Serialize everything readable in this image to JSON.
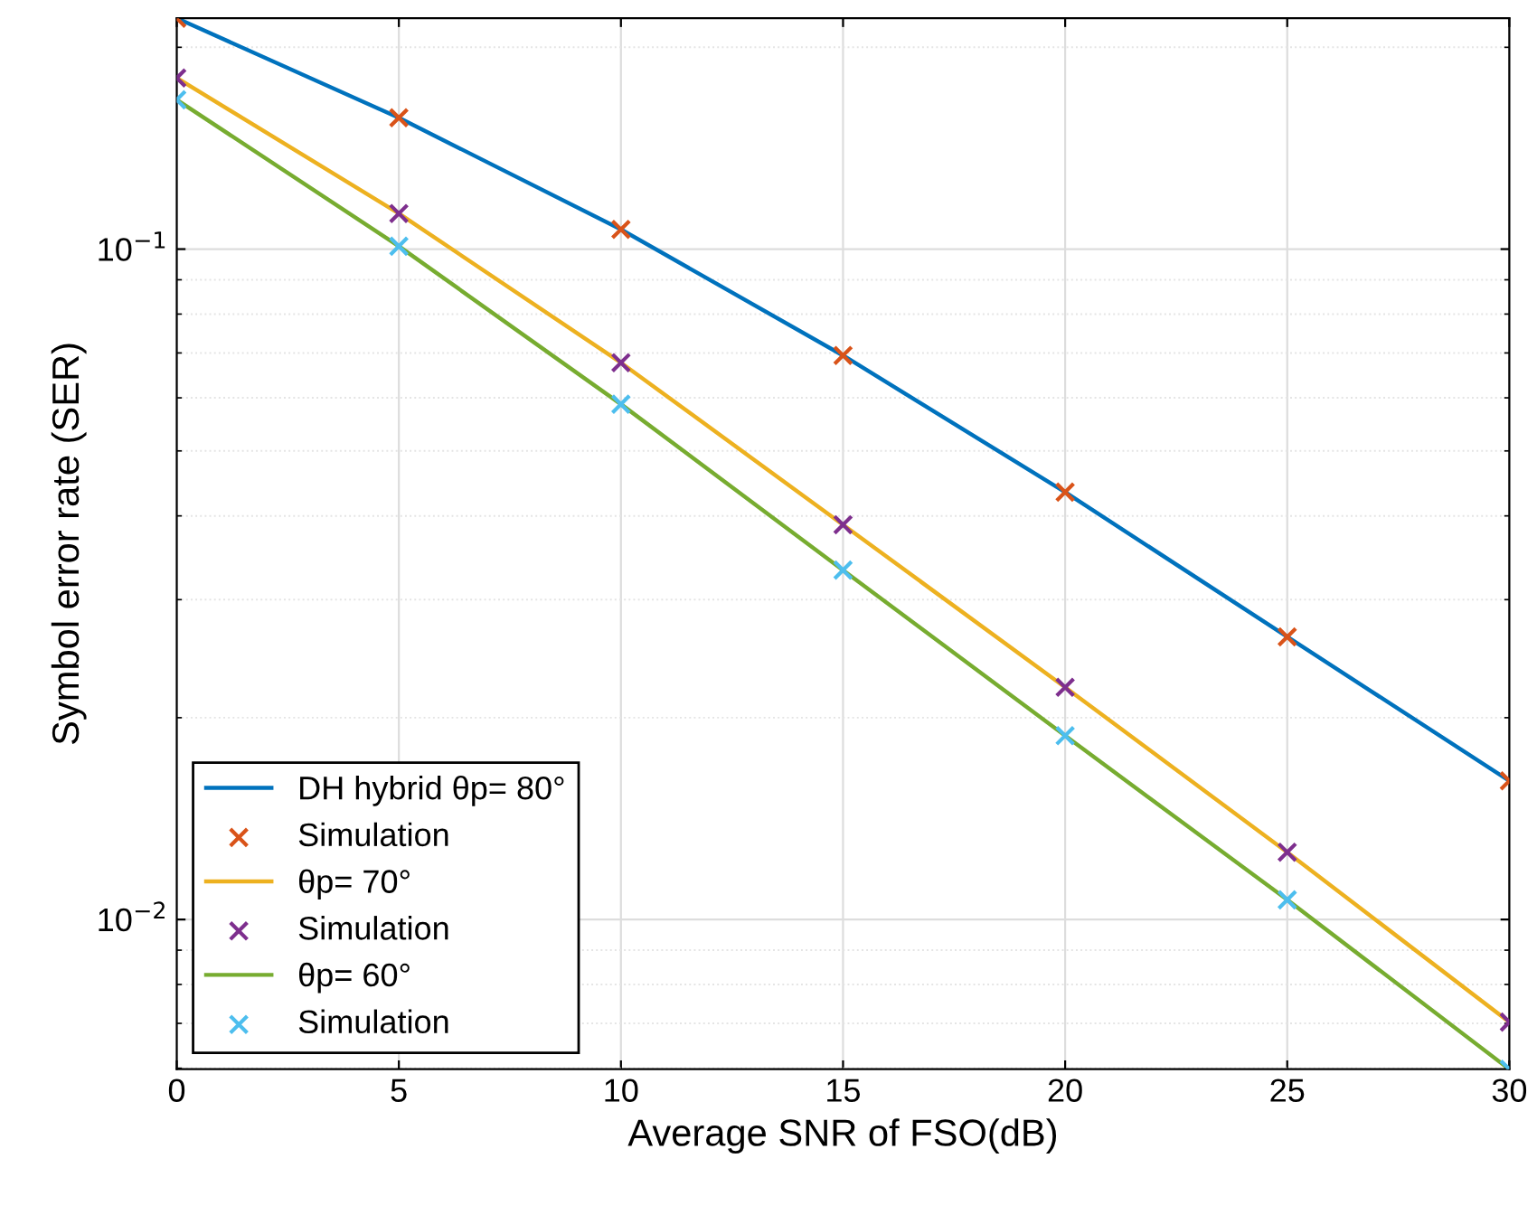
{
  "chart_data": {
    "type": "line",
    "xlabel": "Average SNR of FSO(dB)",
    "ylabel": "Symbol error rate (SER)",
    "x": [
      0,
      5,
      10,
      15,
      20,
      25,
      30
    ],
    "series": [
      {
        "name": "DH hybrid θp= 80°",
        "color": "#0072bd",
        "values": [
          0.221,
          0.157,
          0.107,
          0.0694,
          0.0434,
          0.0264,
          0.0161
        ]
      },
      {
        "name": "Simulation",
        "type": "scatter",
        "marker": "cross",
        "color": "#d95319",
        "values": [
          0.221,
          0.157,
          0.107,
          0.0694,
          0.0434,
          0.0264,
          0.0161
        ]
      },
      {
        "name": "θp= 70°",
        "color": "#edb120",
        "values": [
          0.18,
          0.113,
          0.0677,
          0.0388,
          0.0222,
          0.0126,
          0.00703
        ]
      },
      {
        "name": "Simulation",
        "type": "scatter",
        "marker": "cross",
        "color": "#7e2f8e",
        "values": [
          0.18,
          0.113,
          0.0677,
          0.0388,
          0.0222,
          0.0126,
          0.00703
        ]
      },
      {
        "name": "θp= 60°",
        "color": "#77ac30",
        "values": [
          0.167,
          0.101,
          0.0587,
          0.0332,
          0.0188,
          0.0107,
          0.00598
        ]
      },
      {
        "name": "Simulation",
        "type": "scatter",
        "marker": "cross",
        "color": "#4dbeee",
        "values": [
          0.167,
          0.101,
          0.0587,
          0.0332,
          0.0188,
          0.0107,
          0.00598
        ]
      }
    ],
    "log": "y",
    "xlim": [
      0,
      30
    ],
    "xticks": [
      0,
      5,
      10,
      15,
      20,
      25,
      30
    ],
    "ylim": [
      0.00598,
      0.221
    ],
    "yticks": [
      {
        "value": 0.01,
        "label": "10$^{−2}$"
      },
      {
        "value": 0.1,
        "label": "10$^{−1}$"
      }
    ],
    "grid": true,
    "legend": "bottom left"
  }
}
